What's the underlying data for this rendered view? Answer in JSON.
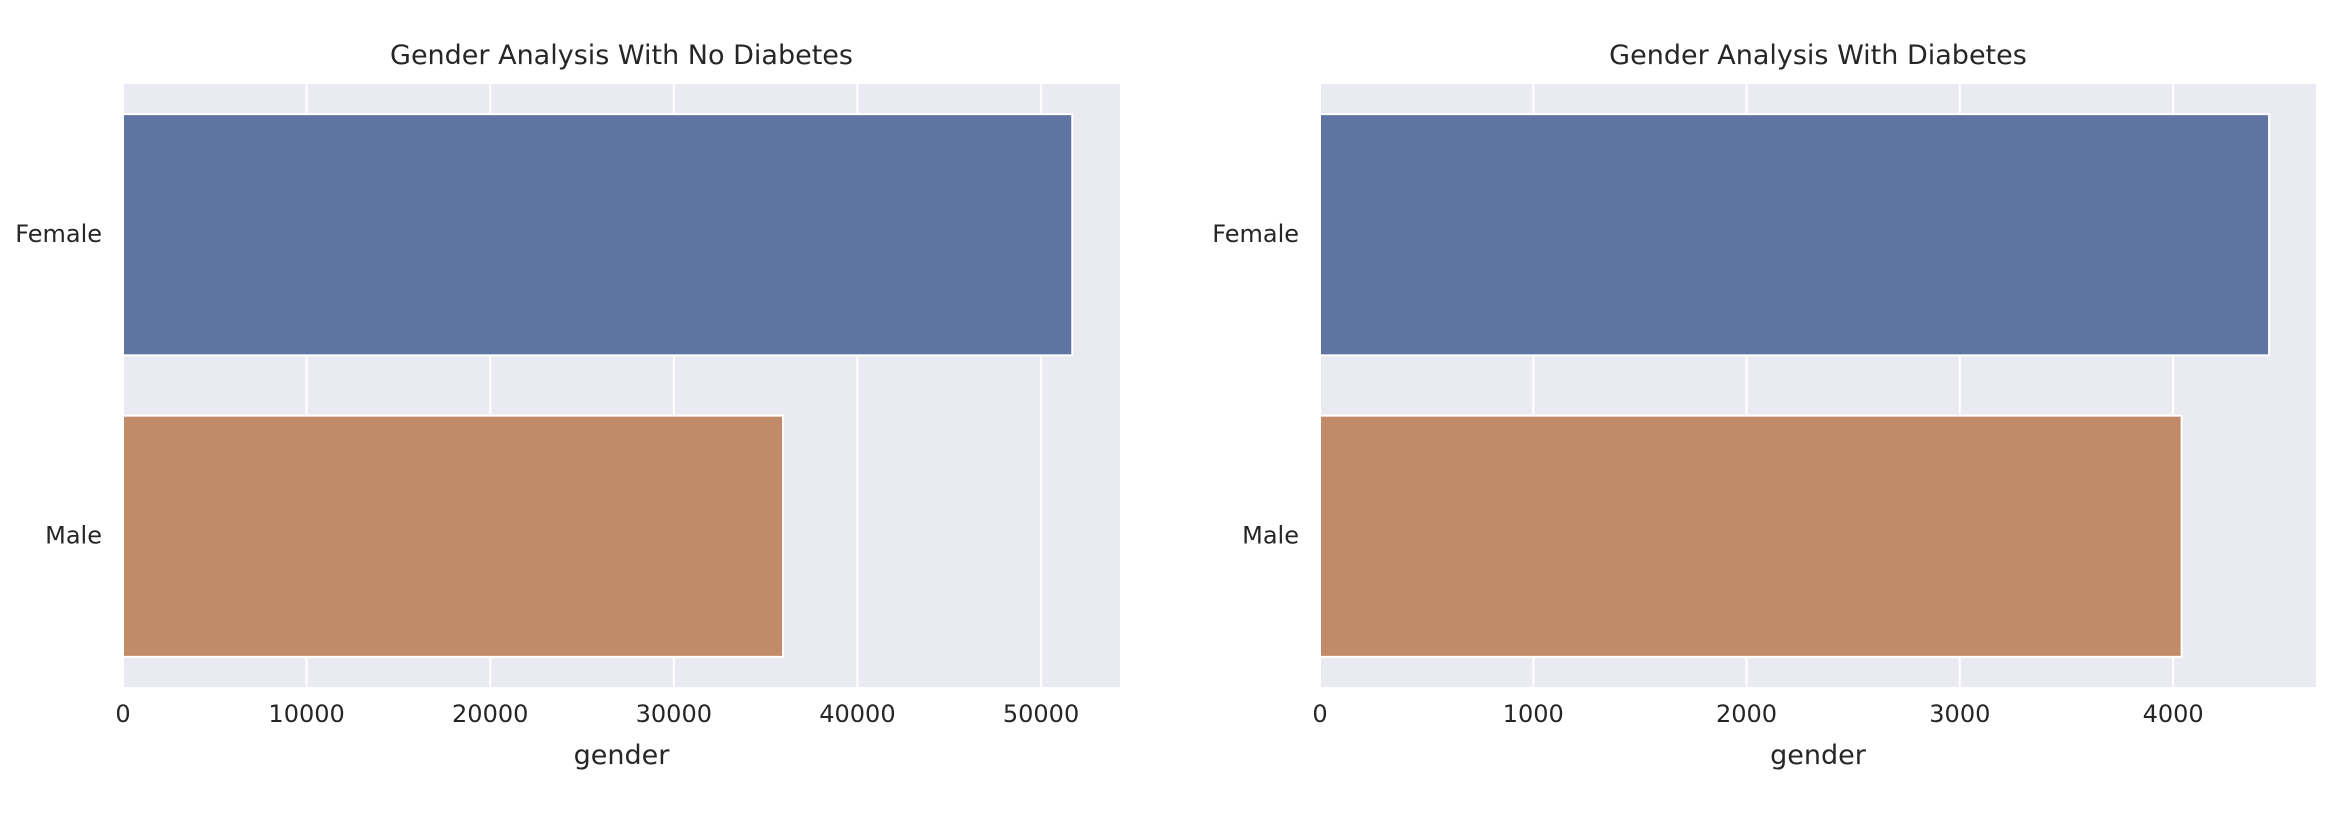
{
  "colors": {
    "background": "#ffffff",
    "plot_background": "#eaeaf2",
    "grid": "#ffffff",
    "text": "#262626"
  },
  "chart_data": [
    {
      "type": "bar",
      "orientation": "horizontal",
      "title": "Gender Analysis With No Diabetes",
      "xlabel": "gender",
      "ylabel": "",
      "categories": [
        "Female",
        "Male"
      ],
      "values": [
        51700,
        35950
      ],
      "bar_colors": [
        "#6074a1",
        "#c18b69"
      ],
      "xlim": [
        0,
        54300
      ],
      "xticks": [
        0,
        10000,
        20000,
        30000,
        40000,
        50000
      ],
      "grid": true,
      "legend": "none"
    },
    {
      "type": "bar",
      "orientation": "horizontal",
      "title": "Gender Analysis With Diabetes",
      "xlabel": "gender",
      "ylabel": "",
      "categories": [
        "Female",
        "Male"
      ],
      "values": [
        4450,
        4040
      ],
      "bar_colors": [
        "#6074a1",
        "#c18b69"
      ],
      "xlim": [
        0,
        4670
      ],
      "xticks": [
        0,
        1000,
        2000,
        3000,
        4000
      ],
      "grid": true,
      "legend": "none"
    }
  ]
}
